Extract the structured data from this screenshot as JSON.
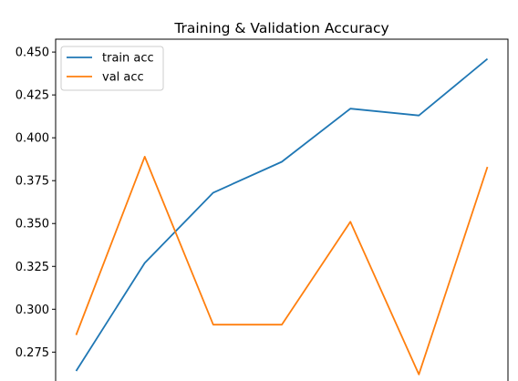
{
  "chart_data": {
    "type": "line",
    "title": "Training & Validation Accuracy",
    "xlabel": "",
    "ylabel": "",
    "x": [
      0,
      1,
      2,
      3,
      4,
      5,
      6
    ],
    "x_tick_labels_visible": false,
    "ylim": [
      0.2555,
      0.4575
    ],
    "xlim": [
      -0.3,
      6.3
    ],
    "y_ticks": [
      "0.275",
      "0.300",
      "0.325",
      "0.350",
      "0.375",
      "0.400",
      "0.425",
      "0.450"
    ],
    "grid": false,
    "legend_placement": "upper-left",
    "series": [
      {
        "name": "train acc",
        "color": "#1f77b4",
        "values": [
          0.264,
          0.327,
          0.368,
          0.386,
          0.417,
          0.413,
          0.446
        ]
      },
      {
        "name": "val acc",
        "color": "#ff7f0e",
        "values": [
          0.285,
          0.389,
          0.291,
          0.291,
          0.351,
          0.262,
          0.383
        ]
      }
    ]
  }
}
